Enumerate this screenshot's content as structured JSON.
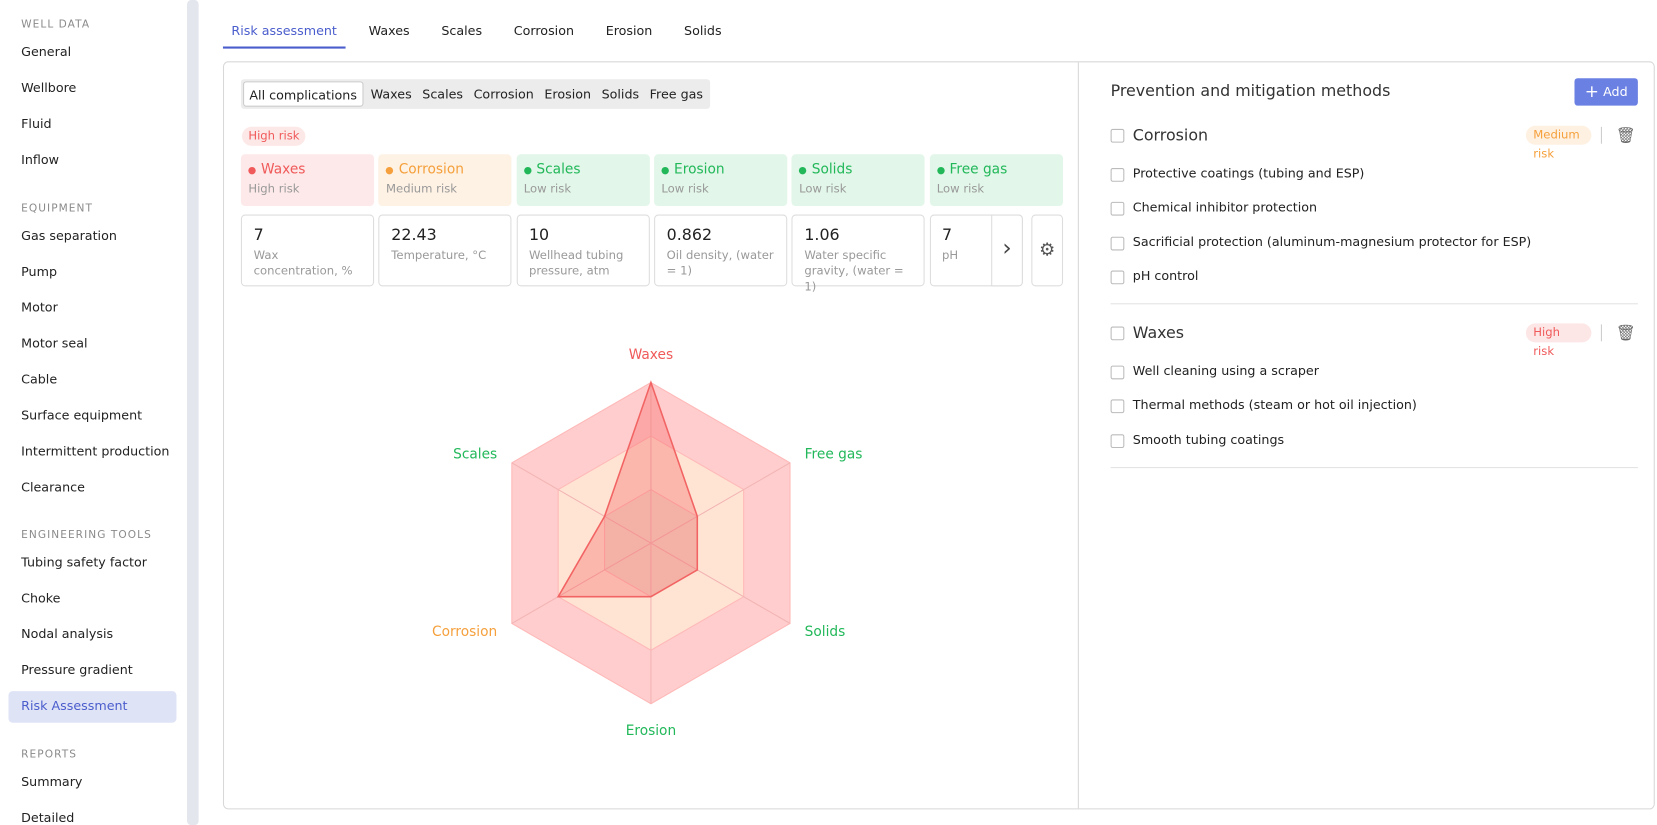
{
  "sidebar": {
    "sections": [
      {
        "title": "WELL DATA",
        "items": [
          "General",
          "Wellbore",
          "Fluid",
          "Inflow"
        ]
      },
      {
        "title": "EQUIPMENT",
        "items": [
          "Gas separation",
          "Pump",
          "Motor",
          "Motor seal",
          "Cable",
          "Surface equipment",
          "Intermittent production",
          "Clearance"
        ]
      },
      {
        "title": "ENGINEERING TOOLS",
        "items": [
          "Tubing safety factor",
          "Choke",
          "Nodal analysis",
          "Pressure gradient",
          "Risk Assessment"
        ]
      },
      {
        "title": "REPORTS",
        "items": [
          "Summary",
          "Detailed"
        ]
      }
    ]
  },
  "tabs": [
    "Risk assessment",
    "Waxes",
    "Scales",
    "Corrosion",
    "Erosion",
    "Solids"
  ],
  "filters": [
    "All complications",
    "Waxes",
    "Scales",
    "Corrosion",
    "Erosion",
    "Solids",
    "Free gas"
  ],
  "overall_risk": "High risk",
  "risk_cards": [
    {
      "name": "Waxes",
      "level": "High risk",
      "color": "#f05a5a"
    },
    {
      "name": "Corrosion",
      "level": "Medium risk",
      "color": "#f5a03c"
    },
    {
      "name": "Scales",
      "level": "Low risk",
      "color": "#22b85a"
    },
    {
      "name": "Erosion",
      "level": "Low risk",
      "color": "#22b85a"
    },
    {
      "name": "Solids",
      "level": "Low risk",
      "color": "#22b85a"
    },
    {
      "name": "Free gas",
      "level": "Low risk",
      "color": "#22b85a"
    }
  ],
  "parameters": [
    {
      "value": 7,
      "label": "Wax concentration, %"
    },
    {
      "value": 22.43,
      "label": "Temperature, °C"
    },
    {
      "value": 10,
      "label": "Wellhead tubing pressure, atm"
    },
    {
      "value": 0.862,
      "label": "Oil density, (water = 1)"
    },
    {
      "value": 1.06,
      "label": "Water specific gravity, (water = 1)"
    },
    {
      "value": 7,
      "label": "pH"
    }
  ],
  "mitigation": {
    "title": "Prevention and mitigation methods",
    "add_button": "Add",
    "groups": [
      {
        "name": "Corrosion",
        "risk": "Medium risk",
        "color": "#f5a03c",
        "methods": [
          "Protective coatings (tubing and ESP)",
          "Chemical inhibitor protection",
          "Sacrificial protection (aluminum-magnesium protector for ESP)",
          "pH control"
        ]
      },
      {
        "name": "Waxes",
        "risk": "High risk",
        "color": "#f05a5a",
        "methods": [
          "Well cleaning using a scraper",
          "Thermal methods (steam or hot oil injection)",
          "Smooth tubing coatings"
        ]
      }
    ]
  },
  "chart_data": {
    "type": "radar",
    "categories": [
      "Waxes",
      "Free gas",
      "Solids",
      "Erosion",
      "Corrosion",
      "Scales"
    ],
    "label_colors": [
      "#f05a5a",
      "#22b85a",
      "#22b85a",
      "#22b85a",
      "#f5a03c",
      "#22b85a"
    ],
    "values": [
      3,
      1,
      1,
      1,
      2,
      1
    ],
    "color": "#f26464",
    "rlim": [
      0,
      3
    ],
    "rticks": [
      1,
      2,
      3
    ],
    "ring_colors": [
      "#f3dccb",
      "#ffe4d3",
      "#ffcdcd"
    ]
  }
}
